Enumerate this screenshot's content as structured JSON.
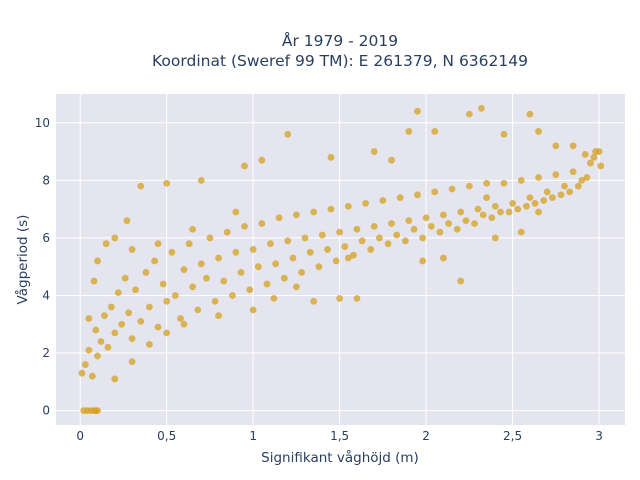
{
  "chart_data": {
    "type": "scatter",
    "title_lines": [
      "År 1979 - 2019",
      "Koordinat (Sweref 99 TM): E 261379, N 6362149"
    ],
    "xlabel": "Signifikant våghöjd (m)",
    "ylabel": "Vågperiod (s)",
    "xlim": [
      -0.14,
      3.15
    ],
    "ylim": [
      -0.5,
      11.0
    ],
    "x_ticks": [
      {
        "value": 0,
        "label": "0"
      },
      {
        "value": 0.5,
        "label": "0,5"
      },
      {
        "value": 1,
        "label": "1"
      },
      {
        "value": 1.5,
        "label": "1,5"
      },
      {
        "value": 2,
        "label": "2"
      },
      {
        "value": 2.5,
        "label": "2,5"
      },
      {
        "value": 3,
        "label": "3"
      }
    ],
    "y_ticks": [
      {
        "value": 0,
        "label": "0"
      },
      {
        "value": 2,
        "label": "2"
      },
      {
        "value": 4,
        "label": "4"
      },
      {
        "value": 6,
        "label": "6"
      },
      {
        "value": 8,
        "label": "8"
      },
      {
        "value": 10,
        "label": "10"
      }
    ],
    "grid": true,
    "marker_color": "#d4a020",
    "plot_bg": "#e5e5ef",
    "series": [
      {
        "points": [
          [
            0.01,
            1.3
          ],
          [
            0.03,
            1.6
          ],
          [
            0.05,
            2.1
          ],
          [
            0.07,
            1.2
          ],
          [
            0.09,
            2.8
          ],
          [
            0.1,
            1.9
          ],
          [
            0.12,
            2.4
          ],
          [
            0.14,
            3.3
          ],
          [
            0.16,
            2.2
          ],
          [
            0.18,
            3.6
          ],
          [
            0.2,
            2.7
          ],
          [
            0.22,
            4.1
          ],
          [
            0.24,
            3.0
          ],
          [
            0.26,
            4.6
          ],
          [
            0.28,
            3.4
          ],
          [
            0.3,
            2.5
          ],
          [
            0.32,
            4.2
          ],
          [
            0.35,
            3.1
          ],
          [
            0.38,
            4.8
          ],
          [
            0.4,
            3.6
          ],
          [
            0.43,
            5.2
          ],
          [
            0.45,
            2.9
          ],
          [
            0.48,
            4.4
          ],
          [
            0.5,
            3.8
          ],
          [
            0.53,
            5.5
          ],
          [
            0.55,
            4.0
          ],
          [
            0.58,
            3.2
          ],
          [
            0.6,
            4.9
          ],
          [
            0.63,
            5.8
          ],
          [
            0.65,
            4.3
          ],
          [
            0.68,
            3.5
          ],
          [
            0.7,
            5.1
          ],
          [
            0.73,
            4.6
          ],
          [
            0.75,
            6.0
          ],
          [
            0.78,
            3.8
          ],
          [
            0.8,
            5.3
          ],
          [
            0.83,
            4.5
          ],
          [
            0.85,
            6.2
          ],
          [
            0.88,
            4.0
          ],
          [
            0.9,
            5.5
          ],
          [
            0.93,
            4.8
          ],
          [
            0.95,
            6.4
          ],
          [
            0.98,
            4.2
          ],
          [
            1.0,
            5.6
          ],
          [
            1.03,
            5.0
          ],
          [
            1.05,
            6.5
          ],
          [
            1.08,
            4.4
          ],
          [
            1.1,
            5.8
          ],
          [
            1.13,
            5.1
          ],
          [
            1.15,
            6.7
          ],
          [
            1.18,
            4.6
          ],
          [
            1.2,
            5.9
          ],
          [
            1.23,
            5.3
          ],
          [
            1.25,
            6.8
          ],
          [
            1.28,
            4.8
          ],
          [
            1.3,
            6.0
          ],
          [
            1.33,
            5.5
          ],
          [
            1.35,
            6.9
          ],
          [
            1.38,
            5.0
          ],
          [
            1.4,
            6.1
          ],
          [
            1.43,
            5.6
          ],
          [
            1.45,
            7.0
          ],
          [
            1.48,
            5.2
          ],
          [
            1.5,
            6.2
          ],
          [
            1.53,
            5.7
          ],
          [
            1.55,
            7.1
          ],
          [
            1.58,
            5.4
          ],
          [
            1.6,
            6.3
          ],
          [
            1.63,
            5.9
          ],
          [
            1.65,
            7.2
          ],
          [
            1.68,
            5.6
          ],
          [
            1.7,
            6.4
          ],
          [
            1.73,
            6.0
          ],
          [
            1.75,
            7.3
          ],
          [
            1.78,
            5.8
          ],
          [
            1.8,
            6.5
          ],
          [
            1.83,
            6.1
          ],
          [
            1.85,
            7.4
          ],
          [
            1.88,
            5.9
          ],
          [
            1.9,
            6.6
          ],
          [
            1.93,
            6.3
          ],
          [
            1.95,
            7.5
          ],
          [
            1.98,
            6.0
          ],
          [
            2.0,
            6.7
          ],
          [
            2.03,
            6.4
          ],
          [
            2.05,
            7.6
          ],
          [
            2.08,
            6.2
          ],
          [
            2.1,
            6.8
          ],
          [
            2.13,
            6.5
          ],
          [
            2.15,
            7.7
          ],
          [
            2.18,
            6.3
          ],
          [
            2.2,
            6.9
          ],
          [
            2.23,
            6.6
          ],
          [
            2.25,
            7.8
          ],
          [
            2.28,
            6.5
          ],
          [
            2.3,
            7.0
          ],
          [
            2.33,
            6.8
          ],
          [
            2.35,
            7.9
          ],
          [
            2.38,
            6.7
          ],
          [
            2.4,
            7.1
          ],
          [
            2.43,
            6.9
          ],
          [
            2.45,
            7.9
          ],
          [
            2.48,
            6.9
          ],
          [
            2.5,
            7.2
          ],
          [
            2.53,
            7.0
          ],
          [
            2.55,
            8.0
          ],
          [
            2.58,
            7.1
          ],
          [
            2.6,
            7.4
          ],
          [
            2.63,
            7.2
          ],
          [
            2.65,
            8.1
          ],
          [
            2.68,
            7.3
          ],
          [
            2.7,
            7.6
          ],
          [
            2.73,
            7.4
          ],
          [
            2.75,
            8.2
          ],
          [
            2.78,
            7.5
          ],
          [
            2.8,
            7.8
          ],
          [
            2.83,
            7.6
          ],
          [
            2.85,
            8.3
          ],
          [
            2.88,
            7.8
          ],
          [
            2.9,
            8.0
          ],
          [
            2.93,
            8.1
          ],
          [
            2.95,
            8.6
          ],
          [
            2.97,
            8.8
          ],
          [
            3.0,
            9.0
          ],
          [
            3.01,
            8.5
          ],
          [
            2.98,
            9.0
          ],
          [
            2.92,
            8.9
          ],
          [
            2.85,
            9.2
          ],
          [
            0.02,
            0.0
          ],
          [
            0.04,
            0.0
          ],
          [
            0.06,
            0.0
          ],
          [
            0.08,
            0.0
          ],
          [
            0.09,
            0.0
          ],
          [
            0.1,
            0.0
          ],
          [
            0.05,
            3.2
          ],
          [
            0.08,
            4.5
          ],
          [
            0.1,
            5.2
          ],
          [
            0.15,
            5.8
          ],
          [
            0.2,
            6.0
          ],
          [
            0.27,
            6.6
          ],
          [
            0.35,
            7.8
          ],
          [
            0.5,
            7.9
          ],
          [
            0.7,
            8.0
          ],
          [
            0.95,
            8.5
          ],
          [
            1.2,
            9.6
          ],
          [
            1.05,
            8.7
          ],
          [
            1.45,
            8.8
          ],
          [
            1.7,
            9.0
          ],
          [
            1.8,
            8.7
          ],
          [
            1.95,
            10.4
          ],
          [
            1.9,
            9.7
          ],
          [
            2.05,
            9.7
          ],
          [
            2.25,
            10.3
          ],
          [
            2.32,
            10.5
          ],
          [
            2.45,
            9.6
          ],
          [
            2.6,
            10.3
          ],
          [
            2.65,
            9.7
          ],
          [
            2.75,
            9.2
          ],
          [
            2.2,
            4.5
          ],
          [
            2.1,
            5.3
          ],
          [
            1.98,
            5.2
          ],
          [
            1.6,
            3.9
          ],
          [
            1.5,
            3.9
          ],
          [
            1.35,
            3.8
          ],
          [
            1.25,
            4.3
          ],
          [
            1.12,
            3.9
          ],
          [
            0.2,
            1.1
          ],
          [
            0.3,
            1.7
          ],
          [
            0.4,
            2.3
          ],
          [
            0.5,
            2.7
          ],
          [
            0.6,
            3.0
          ],
          [
            0.8,
            3.3
          ],
          [
            1.0,
            3.5
          ],
          [
            2.4,
            6.0
          ],
          [
            2.55,
            6.2
          ],
          [
            2.65,
            6.9
          ],
          [
            2.35,
            7.4
          ],
          [
            1.55,
            5.3
          ],
          [
            0.9,
            6.9
          ],
          [
            0.65,
            6.3
          ],
          [
            0.45,
            5.8
          ],
          [
            0.3,
            5.6
          ]
        ]
      }
    ]
  }
}
